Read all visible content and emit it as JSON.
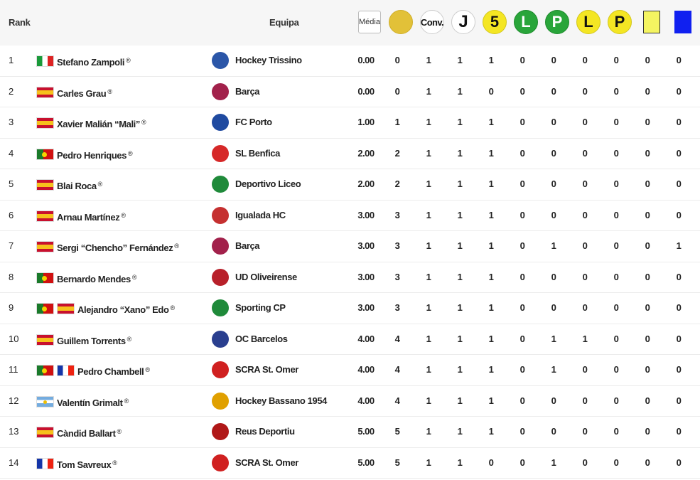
{
  "header": {
    "rank": "Rank",
    "team": "Equipa",
    "media": "Média",
    "conv": "Conv.",
    "j": "J",
    "five": "5",
    "l1": "L",
    "p1": "P",
    "l2": "L",
    "p2": "P"
  },
  "rows": [
    {
      "rank": "1",
      "flags": [
        "it"
      ],
      "player": "Stefano Zampoli",
      "reg": "®",
      "team": "Hockey Trissino",
      "logo": "#2b56a8",
      "avg": "0.00",
      "vals": [
        "0",
        "1",
        "1",
        "1",
        "0",
        "0",
        "0",
        "0",
        "0",
        "0"
      ]
    },
    {
      "rank": "2",
      "flags": [
        "es"
      ],
      "player": "Carles Grau",
      "reg": "®",
      "team": "Barça",
      "logo": "#a2214b",
      "avg": "0.00",
      "vals": [
        "0",
        "1",
        "1",
        "0",
        "0",
        "0",
        "0",
        "0",
        "0",
        "0"
      ]
    },
    {
      "rank": "3",
      "flags": [
        "es"
      ],
      "player": "Xavier Malián “Mali”",
      "reg": "®",
      "team": "FC Porto",
      "logo": "#1f4aa0",
      "avg": "1.00",
      "vals": [
        "1",
        "1",
        "1",
        "1",
        "0",
        "0",
        "0",
        "0",
        "0",
        "0"
      ]
    },
    {
      "rank": "4",
      "flags": [
        "pt"
      ],
      "player": "Pedro Henriques",
      "reg": "®",
      "team": "SL Benfica",
      "logo": "#d62828",
      "avg": "2.00",
      "vals": [
        "2",
        "1",
        "1",
        "1",
        "0",
        "0",
        "0",
        "0",
        "0",
        "0"
      ]
    },
    {
      "rank": "5",
      "flags": [
        "es"
      ],
      "player": "Blai Roca",
      "reg": "®",
      "team": "Deportivo Liceo",
      "logo": "#1f8a3a",
      "avg": "2.00",
      "vals": [
        "2",
        "1",
        "1",
        "1",
        "0",
        "0",
        "0",
        "0",
        "0",
        "0"
      ]
    },
    {
      "rank": "6",
      "flags": [
        "es"
      ],
      "player": "Arnau Martínez",
      "reg": "®",
      "team": "Igualada HC",
      "logo": "#c53030",
      "avg": "3.00",
      "vals": [
        "3",
        "1",
        "1",
        "1",
        "0",
        "0",
        "0",
        "0",
        "0",
        "0"
      ]
    },
    {
      "rank": "7",
      "flags": [
        "es"
      ],
      "player": "Sergi “Chencho” Fernández",
      "reg": "®",
      "team": "Barça",
      "logo": "#a2214b",
      "avg": "3.00",
      "vals": [
        "3",
        "1",
        "1",
        "1",
        "0",
        "1",
        "0",
        "0",
        "0",
        "1"
      ]
    },
    {
      "rank": "8",
      "flags": [
        "pt"
      ],
      "player": "Bernardo Mendes",
      "reg": "®",
      "team": "UD Oliveirense",
      "logo": "#b8202a",
      "avg": "3.00",
      "vals": [
        "3",
        "1",
        "1",
        "1",
        "0",
        "0",
        "0",
        "0",
        "0",
        "0"
      ]
    },
    {
      "rank": "9",
      "flags": [
        "pt",
        "es"
      ],
      "player": "Alejandro “Xano” Edo",
      "reg": "®",
      "team": "Sporting CP",
      "logo": "#1f8a3a",
      "avg": "3.00",
      "vals": [
        "3",
        "1",
        "1",
        "1",
        "0",
        "0",
        "0",
        "0",
        "0",
        "0"
      ]
    },
    {
      "rank": "10",
      "flags": [
        "es"
      ],
      "player": "Guillem Torrents",
      "reg": "®",
      "team": "OC Barcelos",
      "logo": "#2a3f8f",
      "avg": "4.00",
      "vals": [
        "4",
        "1",
        "1",
        "1",
        "0",
        "1",
        "1",
        "0",
        "0",
        "0"
      ]
    },
    {
      "rank": "11",
      "flags": [
        "pt",
        "fr"
      ],
      "player": "Pedro Chambell",
      "reg": "®",
      "team": "SCRA St. Omer",
      "logo": "#d02020",
      "avg": "4.00",
      "vals": [
        "4",
        "1",
        "1",
        "1",
        "0",
        "1",
        "0",
        "0",
        "0",
        "0"
      ]
    },
    {
      "rank": "12",
      "flags": [
        "ar"
      ],
      "player": "Valentín Grimalt",
      "reg": "®",
      "team": "Hockey Bassano 1954",
      "logo": "#e0a000",
      "avg": "4.00",
      "vals": [
        "4",
        "1",
        "1",
        "1",
        "0",
        "0",
        "0",
        "0",
        "0",
        "0"
      ]
    },
    {
      "rank": "13",
      "flags": [
        "es"
      ],
      "player": "Càndid Ballart",
      "reg": "®",
      "team": "Reus Deportiu",
      "logo": "#b01818",
      "avg": "5.00",
      "vals": [
        "5",
        "1",
        "1",
        "1",
        "0",
        "0",
        "0",
        "0",
        "0",
        "0"
      ]
    },
    {
      "rank": "14",
      "flags": [
        "fr"
      ],
      "player": "Tom Savreux",
      "reg": "®",
      "team": "SCRA St. Omer",
      "logo": "#d02020",
      "avg": "5.00",
      "vals": [
        "5",
        "1",
        "1",
        "0",
        "0",
        "1",
        "0",
        "0",
        "0",
        "0"
      ]
    }
  ],
  "colors": {
    "coin": "#e2c138",
    "yellow": "#f4e623",
    "green": "#29a53a",
    "blue": "#1020f0"
  }
}
